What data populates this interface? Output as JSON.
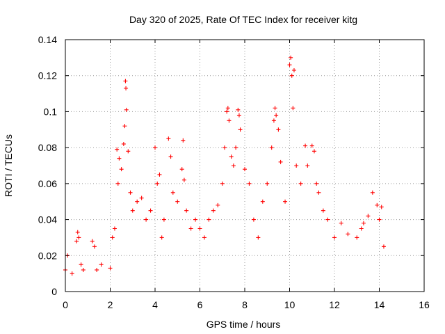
{
  "chart_data": {
    "type": "scatter",
    "title": "Day 320 of 2025, Rate Of TEC Index for receiver kitg",
    "xlabel": "GPS time / hours",
    "ylabel": "ROTI / TECUs",
    "xlim": [
      0,
      16
    ],
    "ylim": [
      0,
      0.14
    ],
    "x_ticks": [
      0,
      2,
      4,
      6,
      8,
      10,
      12,
      14,
      16
    ],
    "x_tick_labels": [
      "0",
      "2",
      "4",
      "6",
      "8",
      "10",
      "12",
      "14",
      "16"
    ],
    "y_ticks": [
      0,
      0.02,
      0.04,
      0.06,
      0.08,
      0.1,
      0.12,
      0.14
    ],
    "y_tick_labels": [
      "0",
      "0.02",
      "0.04",
      "0.06",
      "0.08",
      "0.1",
      "0.12",
      "0.14"
    ],
    "grid": true,
    "marker": "+",
    "marker_color": "#ff0000",
    "data_time_range_hours": [
      0,
      14.2
    ],
    "series": [
      {
        "name": "ROTI",
        "x": [
          0.0,
          0.1,
          0.3,
          0.5,
          0.55,
          0.6,
          0.7,
          0.8,
          1.2,
          1.3,
          1.4,
          1.6,
          2.0,
          2.1,
          2.2,
          2.3,
          2.35,
          2.4,
          2.5,
          2.6,
          2.65,
          2.68,
          2.7,
          2.72,
          2.8,
          2.9,
          3.0,
          3.2,
          3.4,
          3.6,
          3.8,
          4.0,
          4.1,
          4.2,
          4.3,
          4.4,
          4.6,
          4.7,
          4.8,
          5.0,
          5.2,
          5.25,
          5.3,
          5.4,
          5.6,
          5.8,
          6.0,
          6.2,
          6.4,
          6.6,
          6.8,
          7.0,
          7.1,
          7.2,
          7.25,
          7.3,
          7.4,
          7.5,
          7.6,
          7.7,
          7.75,
          7.8,
          8.0,
          8.2,
          8.4,
          8.6,
          8.8,
          9.0,
          9.2,
          9.3,
          9.35,
          9.4,
          9.5,
          9.6,
          9.8,
          10.0,
          10.05,
          10.1,
          10.15,
          10.2,
          10.3,
          10.5,
          10.7,
          10.8,
          11.0,
          11.1,
          11.2,
          11.3,
          11.5,
          11.7,
          12.0,
          12.3,
          12.6,
          13.0,
          13.2,
          13.3,
          13.5,
          13.7,
          13.9,
          14.0,
          14.1,
          14.2
        ],
        "values": [
          0.012,
          0.02,
          0.01,
          0.028,
          0.033,
          0.03,
          0.015,
          0.012,
          0.028,
          0.025,
          0.012,
          0.015,
          0.013,
          0.03,
          0.035,
          0.079,
          0.06,
          0.074,
          0.068,
          0.082,
          0.092,
          0.117,
          0.113,
          0.101,
          0.078,
          0.055,
          0.045,
          0.05,
          0.052,
          0.04,
          0.045,
          0.08,
          0.06,
          0.065,
          0.03,
          0.04,
          0.085,
          0.075,
          0.055,
          0.05,
          0.068,
          0.084,
          0.062,
          0.045,
          0.035,
          0.04,
          0.035,
          0.03,
          0.04,
          0.045,
          0.048,
          0.06,
          0.08,
          0.1,
          0.102,
          0.095,
          0.075,
          0.07,
          0.08,
          0.101,
          0.098,
          0.09,
          0.068,
          0.06,
          0.04,
          0.03,
          0.05,
          0.06,
          0.08,
          0.095,
          0.102,
          0.098,
          0.09,
          0.072,
          0.05,
          0.126,
          0.13,
          0.12,
          0.102,
          0.123,
          0.07,
          0.06,
          0.081,
          0.07,
          0.081,
          0.078,
          0.06,
          0.055,
          0.045,
          0.04,
          0.03,
          0.038,
          0.032,
          0.03,
          0.035,
          0.038,
          0.042,
          0.055,
          0.048,
          0.04,
          0.047,
          0.025
        ]
      }
    ]
  }
}
